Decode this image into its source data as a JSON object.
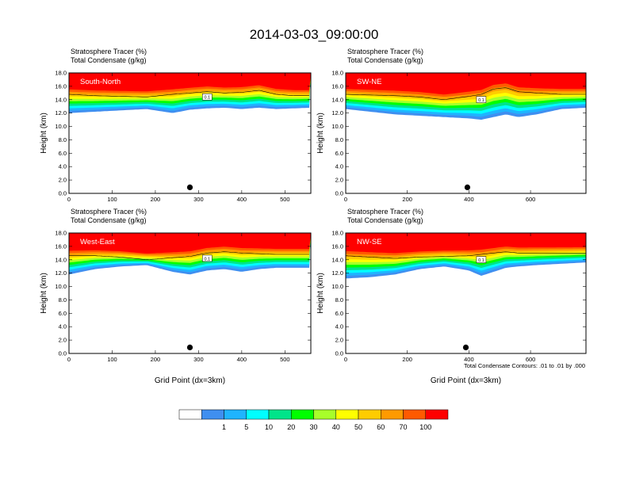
{
  "figure": {
    "title": "2014-03-03_09:00:00",
    "contour_note": "Total Condensate Contours: .01 to .01 by .000",
    "contour_label": "0.1"
  },
  "colorbar": {
    "levels": [
      "",
      "1",
      "5",
      "10",
      "20",
      "30",
      "40",
      "50",
      "60",
      "70",
      "100"
    ],
    "colors": [
      "#ffffff",
      "#3f8ff0",
      "#1fb4ff",
      "#00ffff",
      "#00e48a",
      "#00ff00",
      "#a8ff2a",
      "#ffff00",
      "#ffcc00",
      "#ff9a00",
      "#ff5a00",
      "#ff0000"
    ]
  },
  "chart_data": [
    {
      "type": "heatmap",
      "panel": "South-North",
      "title_lines": [
        "Stratosphere Tracer   (%)",
        "Total Condensate   (g/kg)"
      ],
      "xlabel": "",
      "ylabel": "Height (km)",
      "xlim": [
        0,
        560
      ],
      "ylim": [
        0,
        18
      ],
      "xticks": [
        0,
        100,
        200,
        300,
        400,
        500
      ],
      "yticks": [
        "0.0",
        "2.0",
        "4.0",
        "6.0",
        "8.0",
        "10.0",
        "12.0",
        "14.0",
        "16.0",
        "18.0"
      ],
      "marker_x": 280,
      "profile": {
        "x": [
          0,
          60,
          120,
          180,
          240,
          280,
          320,
          360,
          400,
          440,
          480,
          520,
          560
        ],
        "tropopause_km": [
          14.8,
          14.6,
          14.5,
          14.4,
          14.8,
          15.0,
          15.2,
          15.0,
          15.1,
          15.4,
          14.8,
          14.6,
          14.6
        ],
        "tracer_bottom_km": [
          12.0,
          12.2,
          12.4,
          12.6,
          12.0,
          12.5,
          12.7,
          12.8,
          12.6,
          12.8,
          12.6,
          12.7,
          12.8
        ]
      }
    },
    {
      "type": "heatmap",
      "panel": "SW-NE",
      "title_lines": [
        "Stratosphere Tracer   (%)",
        "Total Condensate   (g/kg)"
      ],
      "xlabel": "",
      "ylabel": "Height (km)",
      "xlim": [
        0,
        780
      ],
      "ylim": [
        0,
        18
      ],
      "xticks": [
        0,
        200,
        400,
        600
      ],
      "yticks": [
        "0.0",
        "2.0",
        "4.0",
        "6.0",
        "8.0",
        "10.0",
        "12.0",
        "14.0",
        "16.0",
        "18.0"
      ],
      "marker_x": 395,
      "profile": {
        "x": [
          0,
          80,
          160,
          240,
          320,
          400,
          440,
          480,
          520,
          560,
          620,
          700,
          780
        ],
        "tropopause_km": [
          14.8,
          14.7,
          14.6,
          14.4,
          14.0,
          14.5,
          14.8,
          15.6,
          15.8,
          15.2,
          15.0,
          14.8,
          14.8
        ],
        "tracer_bottom_km": [
          12.6,
          12.2,
          11.8,
          11.6,
          11.4,
          11.2,
          11.0,
          11.4,
          11.8,
          11.4,
          11.8,
          12.6,
          12.8
        ]
      }
    },
    {
      "type": "heatmap",
      "panel": "West-East",
      "title_lines": [
        "Stratosphere Tracer   (%)",
        "Total Condensate   (g/kg)"
      ],
      "xlabel": "Grid Point (dx=3km)",
      "ylabel": "Height (km)",
      "xlim": [
        0,
        560
      ],
      "ylim": [
        0,
        18
      ],
      "xticks": [
        0,
        100,
        200,
        300,
        400,
        500
      ],
      "yticks": [
        "0.0",
        "2.0",
        "4.0",
        "6.0",
        "8.0",
        "10.0",
        "12.0",
        "14.0",
        "16.0",
        "18.0"
      ],
      "marker_x": 280,
      "profile": {
        "x": [
          0,
          60,
          120,
          180,
          240,
          280,
          320,
          360,
          400,
          440,
          480,
          520,
          560
        ],
        "tropopause_km": [
          14.6,
          14.6,
          14.4,
          14.0,
          14.3,
          14.5,
          15.0,
          15.2,
          15.0,
          14.9,
          14.8,
          14.8,
          14.8
        ],
        "tracer_bottom_km": [
          11.8,
          12.6,
          13.0,
          13.2,
          12.2,
          11.8,
          12.4,
          12.6,
          12.2,
          12.6,
          12.8,
          12.8,
          12.8
        ]
      }
    },
    {
      "type": "heatmap",
      "panel": "NW-SE",
      "title_lines": [
        "Stratosphere Tracer   (%)",
        "Total Condensate   (g/kg)"
      ],
      "xlabel": "Grid Point (dx=3km)",
      "ylabel": "Height (km)",
      "xlim": [
        0,
        780
      ],
      "ylim": [
        0,
        18
      ],
      "xticks": [
        0,
        200,
        400,
        600
      ],
      "yticks": [
        "0.0",
        "2.0",
        "4.0",
        "6.0",
        "8.0",
        "10.0",
        "12.0",
        "14.0",
        "16.0",
        "18.0"
      ],
      "marker_x": 390,
      "profile": {
        "x": [
          0,
          80,
          160,
          240,
          320,
          400,
          440,
          480,
          520,
          560,
          620,
          700,
          780
        ],
        "tropopause_km": [
          14.6,
          14.4,
          14.2,
          14.4,
          14.5,
          14.6,
          14.8,
          15.0,
          15.2,
          15.0,
          15.0,
          15.0,
          15.0
        ],
        "tracer_bottom_km": [
          11.2,
          11.4,
          11.8,
          12.6,
          13.0,
          12.4,
          11.6,
          12.2,
          12.8,
          13.0,
          13.2,
          13.4,
          13.6
        ]
      }
    }
  ]
}
